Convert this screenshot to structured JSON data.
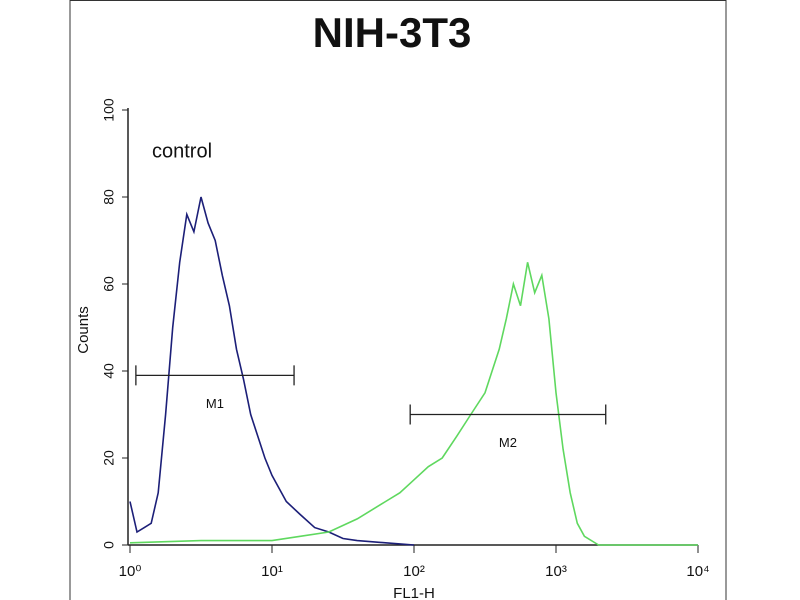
{
  "chart_data": {
    "type": "line",
    "title": "NIH-3T3",
    "x_label": "FL1-H",
    "y_label": "Counts",
    "annotation": "control",
    "x_log": true,
    "xlim": [
      1,
      10000
    ],
    "xticks": [
      {
        "value": 1,
        "label": "10⁰"
      },
      {
        "value": 10,
        "label": "10¹"
      },
      {
        "value": 100,
        "label": "10²"
      },
      {
        "value": 1000,
        "label": "10³"
      },
      {
        "value": 10000,
        "label": "10⁴"
      }
    ],
    "ylim": [
      0,
      100
    ],
    "yticks": [
      0,
      20,
      40,
      60,
      80,
      100
    ],
    "series": [
      {
        "name": "control",
        "color": "#1c1f78",
        "x": [
          1,
          1.12,
          1.26,
          1.41,
          1.58,
          1.78,
          2,
          2.24,
          2.51,
          2.82,
          3.16,
          3.55,
          3.98,
          4.47,
          5.01,
          5.62,
          6.31,
          7.08,
          7.94,
          8.91,
          10,
          12.6,
          15.8,
          20,
          25.1,
          31.6,
          39.8,
          63.1,
          100
        ],
        "values": [
          10,
          3,
          4,
          5,
          12,
          30,
          50,
          65,
          76,
          72,
          80,
          74,
          70,
          62,
          55,
          45,
          38,
          30,
          25,
          20,
          16,
          10,
          7,
          4,
          3,
          1.5,
          1,
          0.5,
          0
        ]
      },
      {
        "name": "NIH-3T3",
        "color": "#5fd85f",
        "x": [
          1,
          3.16,
          10,
          15.8,
          25.1,
          39.8,
          63.1,
          79.4,
          100,
          126,
          158,
          200,
          251,
          316,
          355,
          398,
          447,
          501,
          562,
          631,
          708,
          794,
          891,
          1000,
          1122,
          1259,
          1413,
          1585,
          1995,
          3162,
          10000
        ],
        "values": [
          0.5,
          1,
          1,
          2,
          3,
          6,
          10,
          12,
          15,
          18,
          20,
          25,
          30,
          35,
          40,
          45,
          52,
          60,
          55,
          65,
          58,
          62,
          52,
          35,
          22,
          12,
          5,
          2,
          0,
          0,
          0
        ]
      }
    ],
    "markers": [
      {
        "label": "M1",
        "x": [
          1.1,
          14.3
        ],
        "y": 39
      },
      {
        "label": "M2",
        "x": [
          94,
          2240
        ],
        "y": 30
      }
    ]
  }
}
